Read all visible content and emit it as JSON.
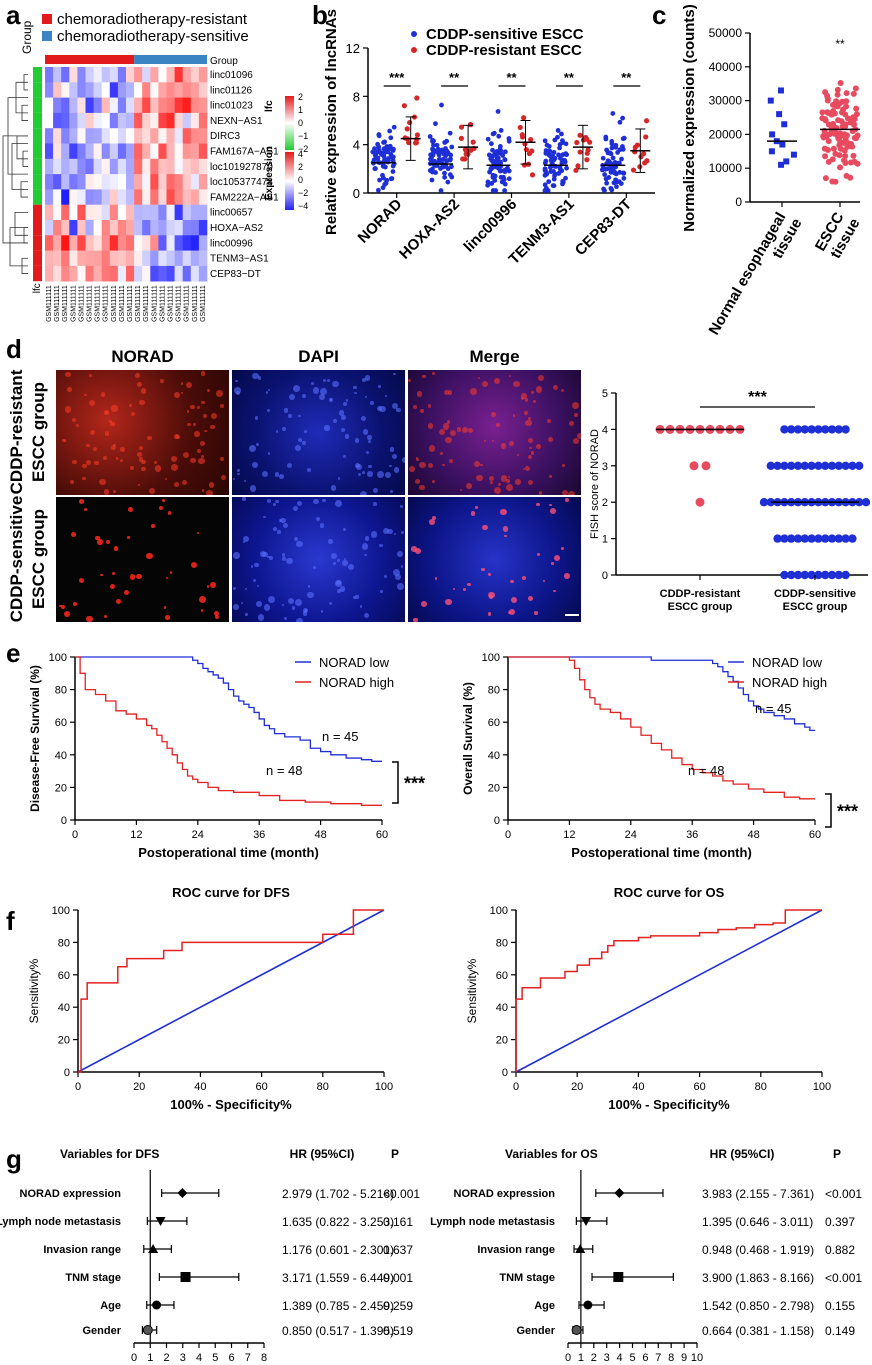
{
  "panels": {
    "a": "a",
    "b": "b",
    "c": "c",
    "d": "d",
    "e": "e",
    "f": "f",
    "g": "g"
  },
  "heatmap": {
    "group_axis_label": "Group",
    "legend": [
      {
        "label": "chemoradiotherapy-resistant",
        "color": "#e31a1c"
      },
      {
        "label": "chemoradiotherapy-sensitive",
        "color": "#3b84c4"
      }
    ],
    "top_bar_label": "Group",
    "lfc_label": "lfc",
    "lfc_ticks": [
      "2",
      "1",
      "0",
      "−1",
      "−2"
    ],
    "expr_label": "Expression",
    "expr_ticks": [
      "4",
      "2",
      "0",
      "−2",
      "−4"
    ],
    "row_lfc_label": "lfc",
    "genes": [
      "linc01096",
      "linc01126",
      "linc01023",
      "NEXN−AS1",
      "DIRC3",
      "FAM167A−AS1",
      "loc101927870",
      "loc105377478",
      "FAM222A−AS1",
      "linc00657",
      "HOXA−AS2",
      "linc00996",
      "TENM3−AS1",
      "CEP83−DT"
    ],
    "gene_lfc_sign": [
      -1,
      -1,
      -1,
      -1,
      -1,
      -1,
      -1,
      -1,
      -1,
      1,
      1,
      1,
      1,
      1
    ],
    "n_resistant": 11,
    "n_sensitive": 9
  },
  "chart_data": [
    {
      "panel": "b",
      "type": "scatter",
      "ylabel": "Relative expression of lncRNAs",
      "ylim": [
        0,
        12
      ],
      "yticks": [
        0,
        4,
        8,
        12
      ],
      "categories": [
        "NORAD",
        "HOXA-AS2",
        "linc00996",
        "TENM3-AS1",
        "CEP83-DT"
      ],
      "series": [
        {
          "name": "CDDP-sensitive ESCC",
          "color": "#1f2fd6",
          "means": [
            2.5,
            2.4,
            2.3,
            2.3,
            2.3
          ]
        },
        {
          "name": "CDDP-resistant ESCC",
          "color": "#d62728",
          "means": [
            4.5,
            3.8,
            4.2,
            3.8,
            3.5
          ]
        }
      ],
      "significance": [
        "***",
        "**",
        "**",
        "**",
        "**"
      ]
    },
    {
      "panel": "c",
      "type": "scatter",
      "ylabel": "Normalized expression (counts)",
      "ylim": [
        0,
        50000
      ],
      "yticks": [
        "0",
        "10000",
        "20000",
        "30000",
        "40000",
        "50000"
      ],
      "categories": [
        "Normal esophageal tissue",
        "ESCC tissue"
      ],
      "category_lines": [
        [
          "Normal esophageal",
          "tissue"
        ],
        [
          "ESCC",
          "tissue"
        ]
      ],
      "means": [
        18000,
        21500
      ],
      "significance": [
        "",
        "**"
      ]
    },
    {
      "panel": "d",
      "type": "scatter",
      "ylabel": "FISH score of NORAD",
      "ylim": [
        0,
        5
      ],
      "yticks": [
        "0",
        "1",
        "2",
        "3",
        "4",
        "5"
      ],
      "categories": [
        "CDDP-resistant ESCC group",
        "CDDP-sensitive ESCC group"
      ],
      "category_lines": [
        [
          "CDDP-resistant",
          "ESCC group"
        ],
        [
          "CDDP-sensitive",
          "ESCC group"
        ]
      ],
      "medians": [
        4,
        2
      ],
      "significance": "***"
    },
    {
      "panel": "e-left",
      "type": "line",
      "ylabel": "Disease-Free Survival (%)",
      "xlabel": "Postoperational time (month)",
      "xlim": [
        0,
        60
      ],
      "ylim": [
        0,
        100
      ],
      "xticks": [
        "0",
        "12",
        "24",
        "36",
        "48",
        "60"
      ],
      "yticks": [
        "0",
        "20",
        "40",
        "60",
        "80",
        "100"
      ],
      "series": [
        {
          "name": "NORAD low",
          "color": "#1f2fd6",
          "n_label": "n = 45"
        },
        {
          "name": "NORAD high",
          "color": "#e32222",
          "n_label": "n = 48"
        }
      ],
      "significance": "***"
    },
    {
      "panel": "e-right",
      "type": "line",
      "ylabel": "Overall Survival (%)",
      "xlabel": "Postoperational time (month)",
      "xlim": [
        0,
        60
      ],
      "ylim": [
        0,
        100
      ],
      "xticks": [
        "0",
        "12",
        "24",
        "36",
        "48",
        "60"
      ],
      "yticks": [
        "0",
        "20",
        "40",
        "60",
        "80",
        "100"
      ],
      "series": [
        {
          "name": "NORAD low",
          "color": "#1f2fd6",
          "n_label": "n = 45"
        },
        {
          "name": "NORAD high",
          "color": "#e32222",
          "n_label": "n = 48"
        }
      ],
      "significance": "***"
    },
    {
      "panel": "f-left",
      "type": "line",
      "title": "ROC curve for DFS",
      "xlabel": "100% - Specificity%",
      "ylabel": "Sensitivity%",
      "xlim": [
        0,
        100
      ],
      "ylim": [
        0,
        100
      ],
      "xticks": [
        "0",
        "20",
        "40",
        "60",
        "80",
        "100"
      ],
      "yticks": [
        "0",
        "20",
        "40",
        "60",
        "80",
        "100"
      ],
      "roc": [
        [
          0,
          0
        ],
        [
          1,
          0
        ],
        [
          1,
          45
        ],
        [
          3,
          45
        ],
        [
          3,
          55
        ],
        [
          13,
          55
        ],
        [
          13,
          65
        ],
        [
          16,
          65
        ],
        [
          16,
          70
        ],
        [
          28,
          70
        ],
        [
          28,
          75
        ],
        [
          34,
          75
        ],
        [
          34,
          80
        ],
        [
          80,
          80
        ],
        [
          80,
          85
        ],
        [
          90,
          85
        ],
        [
          90,
          95
        ],
        [
          90,
          100
        ],
        [
          100,
          100
        ]
      ]
    },
    {
      "panel": "f-right",
      "type": "line",
      "title": "ROC curve for OS",
      "xlabel": "100% - Specificity%",
      "ylabel": "Sensitivity%",
      "xlim": [
        0,
        100
      ],
      "ylim": [
        0,
        100
      ],
      "xticks": [
        "0",
        "20",
        "40",
        "60",
        "80",
        "100"
      ],
      "yticks": [
        "0",
        "20",
        "40",
        "60",
        "80",
        "100"
      ],
      "roc": [
        [
          0,
          0
        ],
        [
          0,
          45
        ],
        [
          2,
          45
        ],
        [
          2,
          52
        ],
        [
          8,
          52
        ],
        [
          8,
          58
        ],
        [
          16,
          58
        ],
        [
          16,
          62
        ],
        [
          20,
          62
        ],
        [
          20,
          66
        ],
        [
          24,
          66
        ],
        [
          24,
          70
        ],
        [
          28,
          70
        ],
        [
          28,
          74
        ],
        [
          30,
          74
        ],
        [
          30,
          78
        ],
        [
          32,
          78
        ],
        [
          32,
          81
        ],
        [
          40,
          81
        ],
        [
          40,
          83
        ],
        [
          44,
          83
        ],
        [
          44,
          84
        ],
        [
          60,
          84
        ],
        [
          60,
          86
        ],
        [
          66,
          86
        ],
        [
          66,
          88
        ],
        [
          72,
          88
        ],
        [
          72,
          89
        ],
        [
          78,
          89
        ],
        [
          78,
          91
        ],
        [
          84,
          91
        ],
        [
          84,
          92
        ],
        [
          88,
          92
        ],
        [
          88,
          97
        ],
        [
          88,
          100
        ],
        [
          100,
          100
        ]
      ]
    },
    {
      "panel": "g-left",
      "type": "forest",
      "title": "Variables for DFS",
      "hr_header": "HR (95%CI)",
      "p_header": "P",
      "xlim": [
        0,
        8
      ],
      "xticks": [
        "0",
        "1",
        "2",
        "3",
        "4",
        "5",
        "6",
        "7",
        "8"
      ],
      "rows": [
        {
          "label": "NORAD expression",
          "hr": 2.979,
          "lo": 1.702,
          "hi": 5.216,
          "text": "2.979 (1.702 - 5.216)",
          "p": "<0.001",
          "marker": "diamond"
        },
        {
          "label": "Lymph node metastasis",
          "hr": 1.635,
          "lo": 0.822,
          "hi": 3.253,
          "text": "1.635 (0.822 - 3.253)",
          "p": "0.161",
          "marker": "tri-down"
        },
        {
          "label": "Invasion range",
          "hr": 1.176,
          "lo": 0.601,
          "hi": 2.301,
          "text": "1.176 (0.601 - 2.301)",
          "p": "0.637",
          "marker": "tri-up"
        },
        {
          "label": "TNM stage",
          "hr": 3.171,
          "lo": 1.559,
          "hi": 6.449,
          "text": "3.171 (1.559 - 6.449)",
          "p": "0.001",
          "marker": "square"
        },
        {
          "label": "Age",
          "hr": 1.389,
          "lo": 0.785,
          "hi": 2.459,
          "text": "1.389 (0.785 - 2.459)",
          "p": "0.259",
          "marker": "circle"
        },
        {
          "label": "Gender",
          "hr": 0.85,
          "lo": 0.517,
          "hi": 1.395,
          "text": "0.850 (0.517 - 1.395)",
          "p": "0.519",
          "marker": "hex"
        }
      ]
    },
    {
      "panel": "g-right",
      "type": "forest",
      "title": "Variables for OS",
      "hr_header": "HR (95%CI)",
      "p_header": "P",
      "xlim": [
        0,
        10
      ],
      "xticks": [
        "0",
        "1",
        "2",
        "3",
        "4",
        "5",
        "6",
        "7",
        "8",
        "9",
        "10"
      ],
      "rows": [
        {
          "label": "NORAD expression",
          "hr": 3.983,
          "lo": 2.155,
          "hi": 7.361,
          "text": "3.983 (2.155 - 7.361)",
          "p": "<0.001",
          "marker": "diamond"
        },
        {
          "label": "Lymph node metastasis",
          "hr": 1.395,
          "lo": 0.646,
          "hi": 3.011,
          "text": "1.395 (0.646 - 3.011)",
          "p": "0.397",
          "marker": "tri-down"
        },
        {
          "label": "Invasion range",
          "hr": 0.948,
          "lo": 0.468,
          "hi": 1.919,
          "text": "0.948 (0.468 - 1.919)",
          "p": "0.882",
          "marker": "tri-up"
        },
        {
          "label": "TNM stage",
          "hr": 3.9,
          "lo": 1.863,
          "hi": 8.166,
          "text": "3.900 (1.863 - 8.166)",
          "p": "<0.001",
          "marker": "square"
        },
        {
          "label": "Age",
          "hr": 1.542,
          "lo": 0.85,
          "hi": 2.798,
          "text": "1.542 (0.850 - 2.798)",
          "p": "0.155",
          "marker": "circle"
        },
        {
          "label": "Gender",
          "hr": 0.664,
          "lo": 0.381,
          "hi": 1.158,
          "text": "0.664 (0.381 - 1.158)",
          "p": "0.149",
          "marker": "hex"
        }
      ]
    }
  ],
  "microscopy": {
    "columns": [
      "NORAD",
      "DAPI",
      "Merge"
    ],
    "rows": [
      [
        "CDDP-resistant",
        "ESCC group"
      ],
      [
        "CDDP-sensitive",
        "ESCC group"
      ]
    ]
  }
}
